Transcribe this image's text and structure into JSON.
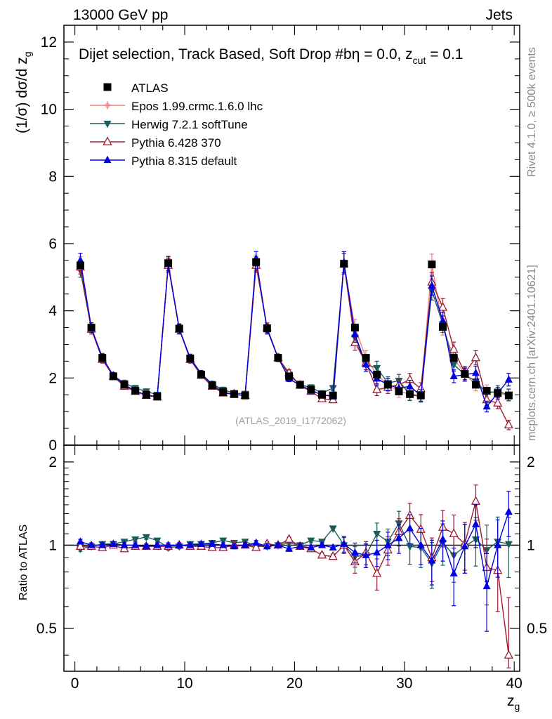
{
  "header": {
    "left": "13000 GeV pp",
    "right": "Jets"
  },
  "side_labels": {
    "rivet": "Rivet 4.1.0, ≥ 500k events",
    "mcplots": "mcplots.cern.ch [arXiv:2401.10621]"
  },
  "analysis_tag": "(ATLAS_2019_I1772062)",
  "chart_data": [
    {
      "type": "scatter",
      "panel": "main",
      "title": "Dijet selection, Track Based, Soft Drop #bη = 0.0, z_cut = 0.1",
      "title_main": "Dijet selection, Track Based, Soft Drop #b",
      "title_eta": "η = 0.0, z",
      "title_sub": "cut",
      "title_tail": " = 0.1",
      "xlabel": "z_g",
      "xlabel_main": "z",
      "xlabel_sub": "g",
      "ylabel": "(1/σ) dσ/d z_g",
      "ylabel_main": "(1/σ) dσ/d z",
      "ylabel_sub": "g",
      "xlim": [
        -1,
        40.5
      ],
      "ylim": [
        0,
        12.5
      ],
      "x_ticks": [
        0,
        10,
        20,
        30,
        40
      ],
      "x_tick_labels": [
        "0",
        "10",
        "20",
        "30",
        "40"
      ],
      "y_ticks": [
        0,
        2,
        4,
        6,
        8,
        10,
        12
      ],
      "y_tick_labels": [
        "0",
        "2",
        "4",
        "6",
        "8",
        "10",
        "12"
      ],
      "legend_position": "top-left",
      "x": [
        0.5,
        1.5,
        2.5,
        3.5,
        4.5,
        5.5,
        6.5,
        7.5,
        8.5,
        9.5,
        10.5,
        11.5,
        12.5,
        13.5,
        14.5,
        15.5,
        16.5,
        17.5,
        18.5,
        19.5,
        20.5,
        21.5,
        22.5,
        23.5,
        24.5,
        25.5,
        26.5,
        27.5,
        28.5,
        29.5,
        30.5,
        31.5,
        32.5,
        33.5,
        34.5,
        35.5,
        36.5,
        37.5,
        38.5,
        39.5
      ],
      "series": [
        {
          "name": "ATLAS",
          "color": "#000000",
          "marker": "square",
          "values": [
            5.35,
            3.5,
            2.6,
            2.05,
            1.8,
            1.62,
            1.5,
            1.45,
            5.42,
            3.47,
            2.58,
            2.1,
            1.78,
            1.58,
            1.52,
            1.48,
            5.45,
            3.48,
            2.6,
            2.05,
            1.8,
            1.65,
            1.5,
            1.48,
            5.4,
            3.5,
            2.6,
            2.1,
            1.8,
            1.6,
            1.52,
            1.48,
            5.38,
            3.52,
            2.6,
            2.12,
            1.8,
            1.62,
            1.55,
            1.48
          ]
        },
        {
          "name": "Epos 1.99.crmc.1.6.0 lhc",
          "color": "#f08080",
          "marker": "cross",
          "values": [
            5.4,
            3.5,
            2.6,
            2.07,
            1.8,
            1.62,
            1.5,
            1.45,
            5.42,
            3.47,
            2.58,
            2.1,
            1.78,
            1.58,
            1.52,
            1.48,
            5.45,
            3.48,
            2.6,
            2.07,
            1.8,
            1.65,
            1.5,
            1.48,
            5.4,
            3.5,
            2.6,
            2.1,
            1.8,
            1.6,
            1.52,
            1.48,
            5.38,
            3.52,
            2.6,
            2.12,
            1.8,
            1.62,
            1.55,
            1.48
          ]
        },
        {
          "name": "Herwig 7.2.1 softTune",
          "color": "#1e5c5c",
          "marker": "triangle-down",
          "values": [
            5.2,
            3.45,
            2.62,
            2.07,
            1.85,
            1.7,
            1.6,
            1.5,
            5.35,
            3.45,
            2.6,
            2.13,
            1.82,
            1.65,
            1.55,
            1.53,
            5.4,
            3.45,
            2.6,
            2.1,
            1.8,
            1.72,
            1.55,
            1.7,
            5.4,
            3.2,
            2.4,
            2.3,
            1.85,
            1.92,
            1.5,
            1.45,
            4.6,
            3.6,
            2.4,
            2.1,
            1.9,
            1.55,
            1.6,
            1.5
          ]
        },
        {
          "name": "Pythia 6.428 370",
          "color": "#9b1b30",
          "marker": "triangle-open",
          "values": [
            5.3,
            3.45,
            2.55,
            2.05,
            1.75,
            1.6,
            1.48,
            1.43,
            5.35,
            3.45,
            2.55,
            2.08,
            1.75,
            1.55,
            1.52,
            1.48,
            5.35,
            3.5,
            2.6,
            2.15,
            1.78,
            1.6,
            1.38,
            1.35,
            5.4,
            3.05,
            2.45,
            1.65,
            1.72,
            1.8,
            1.95,
            1.68,
            4.85,
            4.1,
            2.85,
            2.15,
            2.6,
            1.35,
            1.25,
            0.6
          ]
        },
        {
          "name": "Pythia 8.315 default",
          "color": "#0000e0",
          "marker": "triangle-up",
          "values": [
            5.5,
            3.5,
            2.6,
            2.07,
            1.8,
            1.62,
            1.48,
            1.45,
            5.4,
            3.47,
            2.58,
            2.12,
            1.8,
            1.58,
            1.5,
            1.48,
            5.55,
            3.45,
            2.6,
            1.98,
            1.78,
            1.62,
            1.5,
            1.45,
            5.45,
            3.3,
            2.4,
            1.98,
            1.8,
            1.7,
            1.75,
            1.48,
            4.75,
            3.7,
            2.05,
            2.1,
            2.15,
            1.15,
            1.55,
            1.95
          ]
        }
      ]
    },
    {
      "type": "scatter",
      "panel": "ratio",
      "ylabel": "Ratio to ATLAS",
      "xlabel": "z_g",
      "ylim": [
        0.35,
        2.3
      ],
      "y_ticks": [
        0.5,
        1,
        2
      ],
      "y_tick_labels": [
        "0.5",
        "1",
        "2"
      ],
      "reference_line": 1,
      "x": [
        0.5,
        1.5,
        2.5,
        3.5,
        4.5,
        5.5,
        6.5,
        7.5,
        8.5,
        9.5,
        10.5,
        11.5,
        12.5,
        13.5,
        14.5,
        15.5,
        16.5,
        17.5,
        18.5,
        19.5,
        20.5,
        21.5,
        22.5,
        23.5,
        24.5,
        25.5,
        26.5,
        27.5,
        28.5,
        29.5,
        30.5,
        31.5,
        32.5,
        33.5,
        34.5,
        35.5,
        36.5,
        37.5,
        38.5,
        39.5
      ],
      "series": [
        {
          "name": "Herwig 7.2.1 softTune",
          "color": "#1e5c5c",
          "marker": "triangle-down",
          "values": [
            0.97,
            0.99,
            1.01,
            1.01,
            1.03,
            1.05,
            1.07,
            1.04,
            0.98,
            0.99,
            1.01,
            1.01,
            1.02,
            1.04,
            1.02,
            1.03,
            0.99,
            0.99,
            1.0,
            1.02,
            1.0,
            1.04,
            1.03,
            1.15,
            1.0,
            0.91,
            0.92,
            1.1,
            1.03,
            1.2,
            0.99,
            0.98,
            0.86,
            1.02,
            0.92,
            0.99,
            1.05,
            0.96,
            1.03,
            1.01
          ]
        },
        {
          "name": "Pythia 6.428 370",
          "color": "#9b1b30",
          "marker": "triangle-open",
          "values": [
            0.99,
            0.99,
            0.98,
            1.0,
            0.97,
            0.99,
            0.99,
            0.99,
            0.99,
            1.0,
            0.99,
            0.99,
            0.98,
            0.98,
            1.0,
            1.0,
            0.98,
            1.01,
            1.0,
            1.05,
            0.99,
            0.97,
            0.92,
            0.91,
            1.0,
            0.87,
            0.94,
            0.79,
            0.96,
            1.12,
            1.28,
            1.14,
            0.9,
            1.16,
            1.1,
            1.01,
            1.44,
            0.83,
            0.81,
            0.4
          ]
        },
        {
          "name": "Pythia 8.315 default",
          "color": "#0000e0",
          "marker": "triangle-up",
          "values": [
            1.03,
            1.0,
            1.0,
            1.01,
            1.0,
            1.0,
            0.99,
            1.0,
            1.0,
            1.0,
            1.0,
            1.01,
            1.01,
            1.0,
            0.99,
            1.0,
            1.02,
            0.99,
            1.0,
            0.97,
            0.99,
            0.98,
            1.0,
            0.98,
            1.01,
            0.94,
            0.92,
            0.94,
            1.0,
            1.06,
            1.15,
            1.0,
            0.88,
            1.05,
            0.79,
            0.99,
            1.19,
            0.71,
            1.0,
            1.32
          ]
        }
      ]
    }
  ]
}
